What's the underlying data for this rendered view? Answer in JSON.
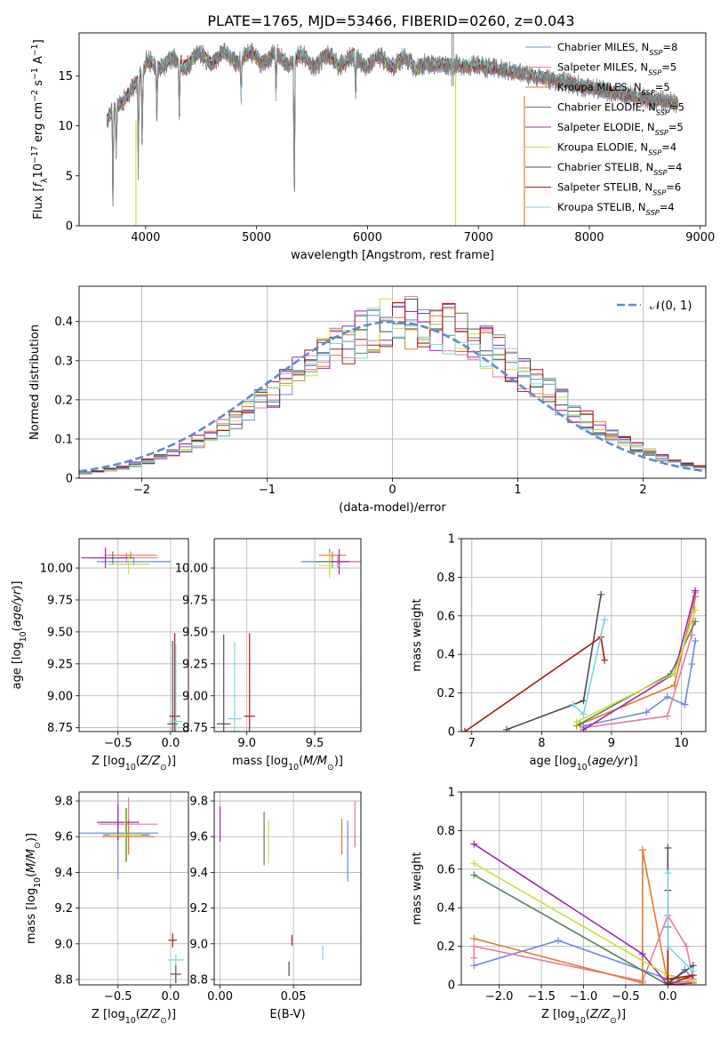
{
  "figure_title": "PLATE=1765, MJD=53466, FIBERID=0260, z=0.043",
  "colors": {
    "Chabrier MILES": "#6a8be0",
    "Salpeter MILES": "#e87ca0",
    "Kroupa MILES": "#e2782f",
    "Chabrier ELODIE": "#5a8060",
    "Salpeter ELODIE": "#9b28b4",
    "Kroupa ELODIE": "#ccdf3c",
    "Chabrier STELIB": "#4d4d4d",
    "Salpeter STELIB": "#a81818",
    "Kroupa STELIB": "#7ad6df"
  },
  "chart_data": [
    {
      "id": "spectrum",
      "type": "line",
      "title": "PLATE=1765, MJD=53466, FIBERID=0260, z=0.043",
      "xlabel": "wavelength [Angstrom, rest frame]",
      "ylabel": "Flux [f_λ 10^-17 erg cm^-2 s^-1 A^-1]",
      "xlim": [
        3400,
        9050
      ],
      "ylim": [
        0,
        19.3
      ],
      "xticks": [
        4000,
        5000,
        6000,
        7000,
        8000,
        9000
      ],
      "yticks": [
        0,
        5,
        10,
        15
      ],
      "grid": false,
      "legend_position": "top-right",
      "observed_color": "#808080",
      "legend": [
        {
          "label": "Chabrier MILES, N",
          "sub": "SSP",
          "n": "=8",
          "model": "Chabrier MILES"
        },
        {
          "label": "Salpeter MILES, N",
          "sub": "SSP",
          "n": "=5",
          "model": "Salpeter MILES"
        },
        {
          "label": "Kroupa MILES, N",
          "sub": "SSP",
          "n": "=5",
          "model": "Kroupa MILES"
        },
        {
          "label": "Chabrier ELODIE, N",
          "sub": "SSP",
          "n": "=5",
          "model": "Chabrier ELODIE"
        },
        {
          "label": "Salpeter ELODIE, N",
          "sub": "SSP",
          "n": "=5",
          "model": "Salpeter ELODIE"
        },
        {
          "label": "Kroupa ELODIE, N",
          "sub": "SSP",
          "n": "=4",
          "model": "Kroupa ELODIE"
        },
        {
          "label": "Chabrier STELIB, N",
          "sub": "SSP",
          "n": "=4",
          "model": "Chabrier STELIB"
        },
        {
          "label": "Salpeter STELIB, N",
          "sub": "SSP",
          "n": "=6",
          "model": "Salpeter STELIB"
        },
        {
          "label": "Kroupa STELIB, N",
          "sub": "SSP",
          "n": "=4",
          "model": "Kroupa STELIB"
        }
      ],
      "continuum": {
        "x": [
          3650,
          3700,
          3800,
          3900,
          4000,
          4100,
          4300,
          4500,
          5000,
          5500,
          6000,
          6500,
          7000,
          7500,
          8000,
          8500,
          8800
        ],
        "y": [
          10.5,
          11.5,
          12.5,
          14,
          16,
          16.3,
          16.2,
          16.8,
          16.8,
          16.5,
          16.5,
          16.2,
          16,
          15,
          13.8,
          12.7,
          12.3
        ]
      },
      "absorption_features": [
        {
          "x": 3705,
          "y": 1.2
        },
        {
          "x": 3735,
          "y": 6.5
        },
        {
          "x": 3934,
          "y": 5.5
        },
        {
          "x": 3969,
          "y": 7.5
        },
        {
          "x": 4101,
          "y": 10.8
        },
        {
          "x": 4303,
          "y": 10.5
        },
        {
          "x": 4861,
          "y": 12.5
        },
        {
          "x": 5175,
          "y": 12
        },
        {
          "x": 5340,
          "y": 0
        },
        {
          "x": 5893,
          "y": 12.5
        }
      ],
      "artifacts": [
        {
          "x": 3912,
          "lo": 0,
          "hi": 10.5,
          "model": "Kroupa ELODIE"
        },
        {
          "x": 6795,
          "lo": 0,
          "hi": 15,
          "model": "Kroupa ELODIE"
        },
        {
          "x": 7415,
          "lo": 0,
          "hi": 13,
          "model": "Kroupa MILES"
        },
        {
          "x": 6760,
          "lo": 14,
          "hi": 19.3,
          "model": ""
        },
        {
          "x": 6775,
          "lo": 14,
          "hi": 19.3,
          "model": ""
        }
      ]
    },
    {
      "id": "residuals",
      "type": "step",
      "xlabel": "(data-model)/error",
      "ylabel": "Normed distribution",
      "xlim": [
        -2.5,
        2.5
      ],
      "ylim": [
        0,
        0.49
      ],
      "xticks": [
        -2,
        -1,
        0,
        1,
        2
      ],
      "yticks": [
        0.0,
        0.1,
        0.2,
        0.3,
        0.4
      ],
      "grid": true,
      "legend_position": "top-right",
      "gaussian": {
        "label": "𝒩(0, 1)",
        "mean": 0,
        "sigma": 1,
        "color": "#5b8ccf"
      },
      "bins": {
        "start": -2.5,
        "width": 0.1,
        "count": 50
      }
    },
    {
      "id": "age-vs-z",
      "type": "errorbar",
      "xlabel": "Z [log10(Z/Z⊙)]",
      "ylabel": "age [log10(age/yr)]",
      "xlim": [
        -0.87,
        0.17
      ],
      "ylim": [
        8.72,
        10.23
      ],
      "xticks": [
        -0.5,
        0.0
      ],
      "xticklabels": [
        "−0.5",
        "0.0"
      ],
      "yticks": [
        8.75,
        9.0,
        9.25,
        9.5,
        9.75,
        10.0
      ],
      "yticklabels": [
        "8.75",
        "9.00",
        "9.25",
        "9.50",
        "9.75",
        "10.00"
      ],
      "grid": true,
      "points": [
        {
          "model": "Chabrier MILES",
          "x": -0.35,
          "xerr": 0.35,
          "y": 10.05,
          "yerr": 0.03
        },
        {
          "model": "Salpeter MILES",
          "x": -0.42,
          "xerr": 0.3,
          "y": 10.08,
          "yerr": 0.04
        },
        {
          "model": "Kroupa MILES",
          "x": -0.38,
          "xerr": 0.25,
          "y": 10.1,
          "yerr": 0.03
        },
        {
          "model": "Chabrier ELODIE",
          "x": -0.55,
          "xerr": 0.2,
          "y": 10.08,
          "yerr": 0.05
        },
        {
          "model": "Salpeter ELODIE",
          "x": -0.62,
          "xerr": 0.23,
          "y": 10.08,
          "yerr": 0.08
        },
        {
          "model": "Kroupa ELODIE",
          "x": -0.4,
          "xerr": 0.2,
          "y": 10.03,
          "yerr": 0.08
        },
        {
          "model": "Chabrier STELIB",
          "x": 0.02,
          "xerr": 0.05,
          "y": 8.78,
          "yerr": 0.65
        },
        {
          "model": "Salpeter STELIB",
          "x": 0.04,
          "xerr": 0.05,
          "y": 8.84,
          "yerr": 0.65
        },
        {
          "model": "Kroupa STELIB",
          "x": 0.05,
          "xerr": 0.06,
          "y": 8.8,
          "yerr": 0.6
        }
      ]
    },
    {
      "id": "age-vs-mass",
      "type": "errorbar",
      "xlabel": "mass [log10(M/M⊙)]",
      "ylabel": "",
      "xlim": [
        8.76,
        9.84
      ],
      "ylim": [
        8.72,
        10.23
      ],
      "xticks": [
        9.0,
        9.5
      ],
      "xticklabels": [
        "9.0",
        "9.5"
      ],
      "yticks": [
        8.75,
        9.0,
        9.25,
        9.5,
        9.75,
        10.0
      ],
      "yticklabels": [
        "8.75",
        "9.00",
        "9.25",
        "9.50",
        "9.75",
        "10.00"
      ],
      "grid": true,
      "points": [
        {
          "model": "Chabrier MILES",
          "x": 9.63,
          "xerr": 0.23,
          "y": 10.05,
          "yerr": 0.05
        },
        {
          "model": "Salpeter MILES",
          "x": 9.67,
          "xerr": 0.15,
          "y": 10.05,
          "yerr": 0.05
        },
        {
          "model": "Kroupa MILES",
          "x": 9.63,
          "xerr": 0.1,
          "y": 10.1,
          "yerr": 0.03
        },
        {
          "model": "Chabrier ELODIE",
          "x": 9.61,
          "xerr": 0.1,
          "y": 10.05,
          "yerr": 0.1
        },
        {
          "model": "Salpeter ELODIE",
          "x": 9.68,
          "xerr": 0.08,
          "y": 10.05,
          "yerr": 0.1
        },
        {
          "model": "Kroupa ELODIE",
          "x": 9.61,
          "xerr": 0.08,
          "y": 10.02,
          "yerr": 0.1
        },
        {
          "model": "Chabrier STELIB",
          "x": 8.83,
          "xerr": 0.05,
          "y": 8.78,
          "yerr": 0.7
        },
        {
          "model": "Salpeter STELIB",
          "x": 9.02,
          "xerr": 0.04,
          "y": 8.84,
          "yerr": 0.65
        },
        {
          "model": "Kroupa STELIB",
          "x": 8.91,
          "xerr": 0.05,
          "y": 8.82,
          "yerr": 0.6
        }
      ]
    },
    {
      "id": "weight-vs-age",
      "type": "line",
      "xlabel": "age [log10(age/yr)]",
      "ylabel": "mass weight",
      "xlim": [
        6.85,
        10.35
      ],
      "ylim": [
        0,
        1.0
      ],
      "xticks": [
        7,
        8,
        9,
        10
      ],
      "yticks": [
        0.0,
        0.2,
        0.4,
        0.6,
        0.8,
        1.0
      ],
      "grid": true,
      "series": [
        {
          "model": "Chabrier MILES",
          "x": [
            8.6,
            9.5,
            9.8,
            10.05,
            10.15,
            10.2
          ],
          "y": [
            0.03,
            0.1,
            0.18,
            0.14,
            0.35,
            0.47
          ]
        },
        {
          "model": "Salpeter MILES",
          "x": [
            8.6,
            9.8,
            10.15,
            10.2
          ],
          "y": [
            0.02,
            0.08,
            0.5,
            0.72
          ]
        },
        {
          "model": "Kroupa MILES",
          "x": [
            8.5,
            9.9,
            10.2
          ],
          "y": [
            0.03,
            0.24,
            0.7
          ]
        },
        {
          "model": "Chabrier ELODIE",
          "x": [
            8.55,
            9.85,
            10.2
          ],
          "y": [
            0.04,
            0.3,
            0.57
          ]
        },
        {
          "model": "Salpeter ELODIE",
          "x": [
            8.6,
            9.9,
            10.2
          ],
          "y": [
            0.01,
            0.3,
            0.73
          ]
        },
        {
          "model": "Kroupa ELODIE",
          "x": [
            8.5,
            9.9,
            10.2
          ],
          "y": [
            0.05,
            0.3,
            0.63
          ]
        },
        {
          "model": "Chabrier STELIB",
          "x": [
            7.5,
            8.6,
            8.85
          ],
          "y": [
            0.01,
            0.16,
            0.71
          ]
        },
        {
          "model": "Salpeter STELIB",
          "x": [
            6.9,
            8.85,
            8.9
          ],
          "y": [
            0.0,
            0.49,
            0.37
          ]
        },
        {
          "model": "Kroupa STELIB",
          "x": [
            8.45,
            8.6,
            8.9
          ],
          "y": [
            0.14,
            0.09,
            0.58
          ]
        }
      ]
    },
    {
      "id": "mass-vs-z",
      "type": "errorbar",
      "xlabel": "Z [log10(Z/Z⊙)]",
      "ylabel": "mass [log10(M/M⊙)]",
      "xlim": [
        -0.87,
        0.17
      ],
      "ylim": [
        8.77,
        9.85
      ],
      "xticks": [
        -0.5,
        0.0
      ],
      "xticklabels": [
        "−0.5",
        "0.0"
      ],
      "yticks": [
        8.8,
        9.0,
        9.2,
        9.4,
        9.6,
        9.8
      ],
      "yticklabels": [
        "8.8",
        "9.0",
        "9.2",
        "9.4",
        "9.6",
        "9.8"
      ],
      "grid": true,
      "points": [
        {
          "model": "Chabrier MILES",
          "x": -0.5,
          "xerr": 0.38,
          "y": 9.62,
          "yerr": 0.26
        },
        {
          "model": "Salpeter MILES",
          "x": -0.4,
          "xerr": 0.28,
          "y": 9.67,
          "yerr": 0.15
        },
        {
          "model": "Kroupa MILES",
          "x": -0.4,
          "xerr": 0.25,
          "y": 9.6,
          "yerr": 0.1
        },
        {
          "model": "Chabrier ELODIE",
          "x": -0.42,
          "xerr": 0.22,
          "y": 9.61,
          "yerr": 0.15
        },
        {
          "model": "Salpeter ELODIE",
          "x": -0.5,
          "xerr": 0.2,
          "y": 9.68,
          "yerr": 0.1
        },
        {
          "model": "Kroupa ELODIE",
          "x": -0.43,
          "xerr": 0.15,
          "y": 9.61,
          "yerr": 0.15
        },
        {
          "model": "Chabrier STELIB",
          "x": 0.05,
          "xerr": 0.05,
          "y": 8.83,
          "yerr": 0.05
        },
        {
          "model": "Salpeter STELIB",
          "x": 0.02,
          "xerr": 0.04,
          "y": 9.02,
          "yerr": 0.04
        },
        {
          "model": "Kroupa STELIB",
          "x": 0.05,
          "xerr": 0.08,
          "y": 8.91,
          "yerr": 0.03
        }
      ]
    },
    {
      "id": "mass-vs-ebv",
      "type": "errorbar",
      "xlabel": "E(B-V)",
      "ylabel": "",
      "xlim": [
        -0.004,
        0.096
      ],
      "ylim": [
        8.77,
        9.85
      ],
      "xticks": [
        0.0,
        0.05
      ],
      "xticklabels": [
        "0.00",
        "0.05"
      ],
      "yticks": [
        8.8,
        9.0,
        9.2,
        9.4,
        9.6,
        9.8
      ],
      "yticklabels": [
        "8.8",
        "9.0",
        "9.2",
        "9.4",
        "9.6",
        "9.8"
      ],
      "grid": true,
      "points": [
        {
          "model": "Chabrier MILES",
          "x": 0.087,
          "xerr": 0,
          "y": 9.52,
          "yerr": 0.17
        },
        {
          "model": "Salpeter MILES",
          "x": 0.092,
          "xerr": 0,
          "y": 9.67,
          "yerr": 0.13
        },
        {
          "model": "Kroupa MILES",
          "x": 0.083,
          "xerr": 0,
          "y": 9.6,
          "yerr": 0.1
        },
        {
          "model": "Chabrier ELODIE",
          "x": 0.03,
          "xerr": 0,
          "y": 9.59,
          "yerr": 0.15
        },
        {
          "model": "Salpeter ELODIE",
          "x": 0.0,
          "xerr": 0,
          "y": 9.67,
          "yerr": 0.1
        },
        {
          "model": "Kroupa ELODIE",
          "x": 0.033,
          "xerr": 0,
          "y": 9.57,
          "yerr": 0.12
        },
        {
          "model": "Chabrier STELIB",
          "x": 0.047,
          "xerr": 0,
          "y": 8.86,
          "yerr": 0.04
        },
        {
          "model": "Salpeter STELIB",
          "x": 0.049,
          "xerr": 0,
          "y": 9.02,
          "yerr": 0.03
        },
        {
          "model": "Kroupa STELIB",
          "x": 0.07,
          "xerr": 0,
          "y": 8.95,
          "yerr": 0.04
        }
      ]
    },
    {
      "id": "weight-vs-z",
      "type": "line",
      "xlabel": "Z [log10(Z/Z⊙)]",
      "ylabel": "mass weight",
      "xlim": [
        -2.45,
        0.45
      ],
      "ylim": [
        0,
        1.0
      ],
      "xticks": [
        -2.0,
        -1.5,
        -1.0,
        -0.5,
        0.0
      ],
      "xticklabels": [
        "−2.0",
        "−1.5",
        "−1.0",
        "−0.5",
        "0.0"
      ],
      "yticks": [
        0.0,
        0.2,
        0.4,
        0.6,
        0.8,
        1.0
      ],
      "grid": true,
      "series": [
        {
          "model": "Chabrier MILES",
          "x": [
            -2.3,
            -1.3,
            0.0,
            0.3,
            0.2,
            0.0
          ],
          "y": [
            0.1,
            0.23,
            0.03,
            0.03,
            0.08,
            0.0
          ]
        },
        {
          "model": "Salpeter MILES",
          "x": [
            -2.3,
            -2.3,
            -0.3,
            0.0,
            0.22,
            0.3,
            0.0
          ],
          "y": [
            0.14,
            0.2,
            0.02,
            0.36,
            0.2,
            0.03,
            0.05
          ]
        },
        {
          "model": "Kroupa MILES",
          "x": [
            -2.3,
            -0.3,
            -0.3,
            0.0,
            0.3
          ],
          "y": [
            0.24,
            0.01,
            0.7,
            0.01,
            0.02
          ]
        },
        {
          "model": "Chabrier ELODIE",
          "x": [
            -2.3,
            0.0,
            0.0
          ],
          "y": [
            0.57,
            0.0,
            0.3
          ]
        },
        {
          "model": "Salpeter ELODIE",
          "x": [
            -2.3,
            -0.3,
            0.0,
            0.3
          ],
          "y": [
            0.73,
            0.16,
            0.0,
            0.01
          ]
        },
        {
          "model": "Kroupa ELODIE",
          "x": [
            -2.3,
            0.0,
            0.3
          ],
          "y": [
            0.63,
            0.05,
            0.02
          ]
        },
        {
          "model": "Chabrier STELIB",
          "x": [
            0.0,
            0.0,
            0.3
          ],
          "y": [
            0.71,
            0.01,
            0.1
          ]
        },
        {
          "model": "Salpeter STELIB",
          "x": [
            0.0,
            0.0,
            0.3,
            0.0
          ],
          "y": [
            0.49,
            0.0,
            0.05,
            0.03
          ]
        },
        {
          "model": "Kroupa STELIB",
          "x": [
            0.0,
            0.0,
            0.3
          ],
          "y": [
            0.58,
            0.2,
            0.07
          ]
        }
      ]
    }
  ]
}
